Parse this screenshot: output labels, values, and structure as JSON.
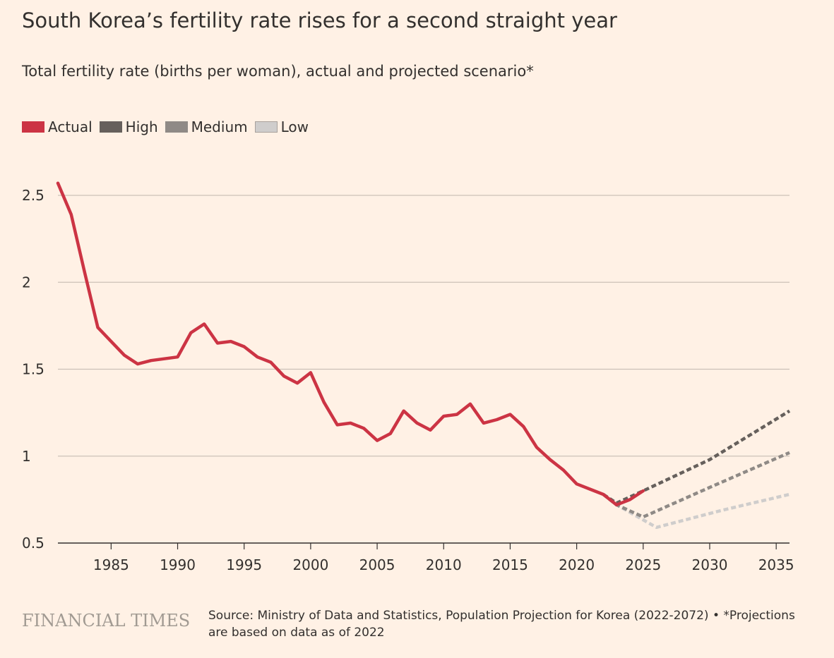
{
  "header": {
    "title": "South Korea’s fertility rate rises for a second straight year",
    "subtitle": "Total fertility rate (births per woman), actual and projected scenario*"
  },
  "footer": {
    "logo": "FINANCIAL TIMES",
    "source": "Source: Ministry of Data and Statistics, Population Projection for Korea (2022-2072) • *Projections are based on data as of 2022"
  },
  "colors": {
    "background": "#fff1e5",
    "actual": "#cc3444",
    "high": "#66605c",
    "medium": "#8f8a86",
    "low": "#cfcdcc",
    "grid": "#ccc1b7",
    "axis": "#33302e"
  },
  "chart_data": {
    "type": "line",
    "title": "South Korea’s fertility rate rises for a second straight year",
    "subtitle": "Total fertility rate (births per woman), actual and projected scenario*",
    "xlim": [
      1981,
      2036
    ],
    "ylim": [
      0.5,
      2.5
    ],
    "x_ticks": [
      "1985",
      "1990",
      "1995",
      "2000",
      "2005",
      "2010",
      "2015",
      "2020",
      "2025",
      "2030",
      "2035"
    ],
    "y_ticks": [
      "0.5",
      "1",
      "1.5",
      "2",
      "2.5"
    ],
    "grid": true,
    "legend_position": "top-left",
    "series": [
      {
        "name": "Actual",
        "style": "solid",
        "color": "#cc3444",
        "points": [
          [
            1981,
            2.57
          ],
          [
            1982,
            2.39
          ],
          [
            1983,
            2.06
          ],
          [
            1984,
            1.74
          ],
          [
            1985,
            1.66
          ],
          [
            1986,
            1.58
          ],
          [
            1987,
            1.53
          ],
          [
            1988,
            1.55
          ],
          [
            1989,
            1.56
          ],
          [
            1990,
            1.57
          ],
          [
            1991,
            1.71
          ],
          [
            1992,
            1.76
          ],
          [
            1993,
            1.65
          ],
          [
            1994,
            1.66
          ],
          [
            1995,
            1.63
          ],
          [
            1996,
            1.57
          ],
          [
            1997,
            1.54
          ],
          [
            1998,
            1.46
          ],
          [
            1999,
            1.42
          ],
          [
            2000,
            1.48
          ],
          [
            2001,
            1.31
          ],
          [
            2002,
            1.18
          ],
          [
            2003,
            1.19
          ],
          [
            2004,
            1.16
          ],
          [
            2005,
            1.09
          ],
          [
            2006,
            1.13
          ],
          [
            2007,
            1.26
          ],
          [
            2008,
            1.19
          ],
          [
            2009,
            1.15
          ],
          [
            2010,
            1.23
          ],
          [
            2011,
            1.24
          ],
          [
            2012,
            1.3
          ],
          [
            2013,
            1.19
          ],
          [
            2014,
            1.21
          ],
          [
            2015,
            1.24
          ],
          [
            2016,
            1.17
          ],
          [
            2017,
            1.05
          ],
          [
            2018,
            0.98
          ],
          [
            2019,
            0.92
          ],
          [
            2020,
            0.84
          ],
          [
            2021,
            0.81
          ],
          [
            2022,
            0.78
          ],
          [
            2023,
            0.72
          ],
          [
            2024,
            0.75
          ],
          [
            2025,
            0.8
          ]
        ]
      },
      {
        "name": "High",
        "style": "dashed",
        "color": "#66605c",
        "points": [
          [
            2022,
            0.78
          ],
          [
            2023,
            0.73
          ],
          [
            2025,
            0.8
          ],
          [
            2030,
            0.98
          ],
          [
            2036,
            1.26
          ]
        ]
      },
      {
        "name": "Medium",
        "style": "dashed",
        "color": "#8f8a86",
        "points": [
          [
            2022,
            0.78
          ],
          [
            2023,
            0.72
          ],
          [
            2025,
            0.65
          ],
          [
            2030,
            0.82
          ],
          [
            2036,
            1.02
          ]
        ]
      },
      {
        "name": "Low",
        "style": "dashed",
        "color": "#cfcdcc",
        "points": [
          [
            2022,
            0.78
          ],
          [
            2023,
            0.72
          ],
          [
            2026,
            0.59
          ],
          [
            2031,
            0.69
          ],
          [
            2036,
            0.78
          ]
        ]
      }
    ]
  }
}
